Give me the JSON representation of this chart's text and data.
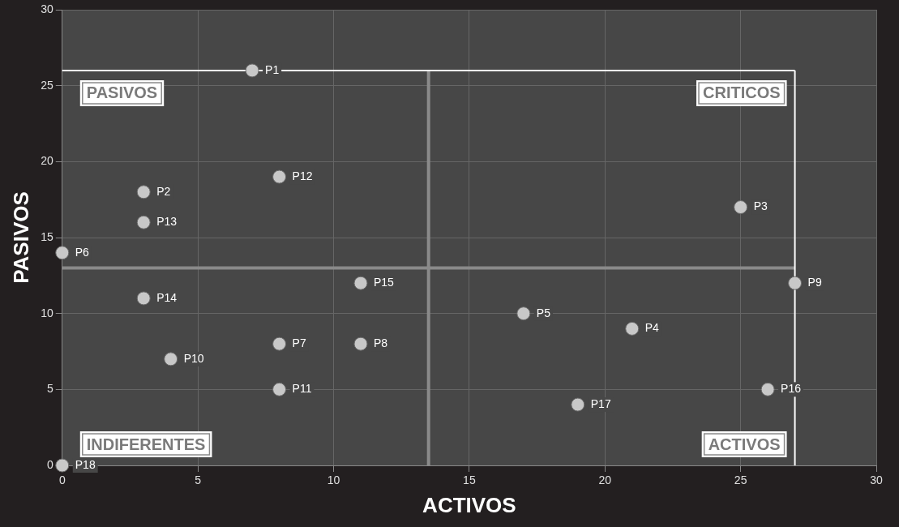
{
  "chart_data": {
    "type": "scatter",
    "xlabel": "ACTIVOS",
    "ylabel": "PASIVOS",
    "xlim": [
      0,
      30
    ],
    "ylim": [
      0,
      30
    ],
    "xticks": [
      0,
      5,
      10,
      15,
      20,
      25,
      30
    ],
    "yticks": [
      0,
      5,
      10,
      15,
      20,
      25,
      30
    ],
    "grid": true,
    "marker": "circle",
    "series": [
      {
        "color": "#c8c8c8",
        "x": [
          7,
          3,
          25,
          21,
          17,
          0,
          8,
          11,
          27,
          4,
          8,
          8,
          3,
          3,
          11,
          26,
          19,
          0
        ],
        "values": [
          26,
          18,
          17,
          9,
          10,
          14,
          8,
          8,
          12,
          7,
          5,
          19,
          16,
          11,
          12,
          5,
          4,
          0
        ],
        "value_labels": [
          "P1",
          "P2",
          "P3",
          "P4",
          "P5",
          "P6",
          "P7",
          "P8",
          "P9",
          "P10",
          "P11",
          "P12",
          "P13",
          "P14",
          "P15",
          "P16",
          "P17",
          "P18"
        ]
      }
    ],
    "ref_lines": [
      {
        "axis": "x",
        "value": 13.5,
        "color": "#8a8a8a"
      },
      {
        "axis": "y",
        "value": 13,
        "color": "#8a8a8a"
      },
      {
        "axis": "x",
        "value": 27,
        "color": "#ffffff"
      },
      {
        "axis": "y",
        "value": 26,
        "color": "#ffffff"
      }
    ],
    "annotations": [
      "PASIVOS",
      "CRITICOS",
      "INDIFERENTES",
      "ACTIVOS"
    ]
  }
}
